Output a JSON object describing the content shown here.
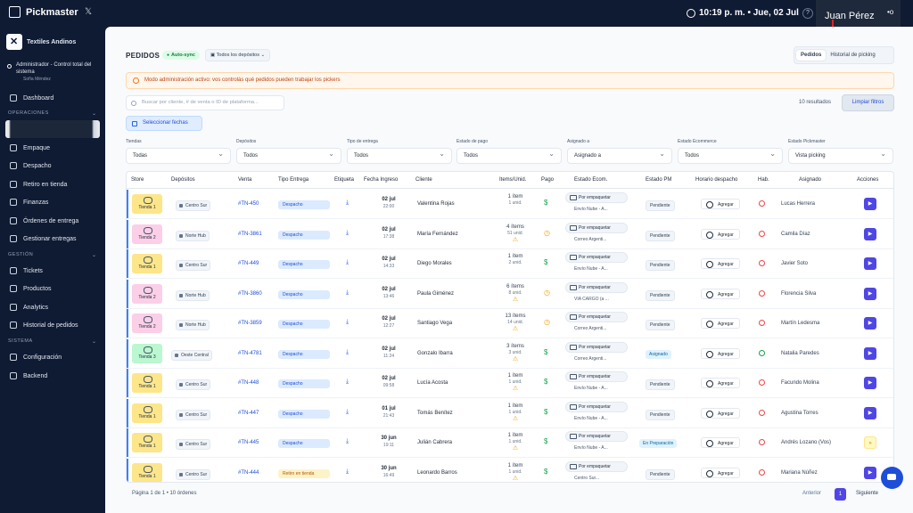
{
  "app": {
    "name": "Pickmaster",
    "time": "10:19 p. m. • Jue, 02 Jul",
    "user": "Juan Pérez"
  },
  "sidebar": {
    "company": "Textiles Andinos",
    "admin_label": "Administrador - Control total del sistema",
    "admin_user": "Sofía Méndez",
    "dashboard": "Dashboard",
    "sections": {
      "operaciones": "OPERACIONES",
      "gestion": "GESTIÓN",
      "sistema": "SISTEMA"
    },
    "operaciones": [
      "Empaque",
      "Despacho",
      "Retiro en tienda",
      "Finanzas",
      "Órdenes de entrega",
      "Gestionar entregas"
    ],
    "gestion": [
      "Tickets",
      "Productos",
      "Analytics",
      "Historial de pedidos"
    ],
    "sistema": [
      "Configuración",
      "Backend"
    ]
  },
  "header": {
    "title": "PEDIDOS",
    "autosync": "Auto-sync",
    "deposit_selector": "Todos los depósitos",
    "tabs": [
      "Pedidos",
      "Historial de picking"
    ]
  },
  "banner": "Modo administración activo: vos controlás qué pedidos pueden trabajar los pickers",
  "search": {
    "placeholder": "Buscar por cliente, # de venta o ID de plataforma...",
    "results": "10 resultados",
    "clear": "Limpiar filtros",
    "dates": "Seleccionar fechas"
  },
  "filters": [
    {
      "label": "Tiendas",
      "value": "Todas"
    },
    {
      "label": "Depósitos",
      "value": "Todos"
    },
    {
      "label": "Tipo de entrega",
      "value": "Todos"
    },
    {
      "label": "Estado de pago",
      "value": "Todos"
    },
    {
      "label": "Asignado a",
      "value": "Asignado a"
    },
    {
      "label": "Estado Ecommerce",
      "value": "Todos"
    },
    {
      "label": "Estado Pickmaster",
      "value": "Vista picking"
    }
  ],
  "columns": [
    "Store",
    "Depósitos",
    "Venta",
    "Tipo Entrega",
    "Etiqueta",
    "Fecha Ingreso",
    "Cliente",
    "Items/Unid.",
    "Pago",
    "Estado Ecom.",
    "Estado PM",
    "Horario despacho",
    "Hab.",
    "Asignado",
    "Acciones"
  ],
  "colors": {
    "primary": "#4f46e5",
    "tienda1": "#fde68a",
    "tienda2": "#fbcfe8",
    "tienda3": "#bbf7d0"
  },
  "orders": [
    {
      "store": "Tienda 1",
      "deposit": "Centro Sur",
      "sale": "#TN-450",
      "delivery": "Despacho",
      "date": "02 jul",
      "hour": "22:00",
      "client": "Valentina Rojas",
      "items": "1 ítem",
      "units": "1 unid.",
      "payment": "$",
      "ecom_status": "Por empaquetar",
      "ecom_sub": "Envío Nube - A...",
      "pm_status": "Pendiente",
      "schedule": "Agregar",
      "assigned": "Lucas Herrera",
      "action": "▶"
    },
    {
      "store": "Tienda 2",
      "deposit": "Norte Hub",
      "sale": "#TN-3861",
      "delivery": "Despacho",
      "date": "02 jul",
      "hour": "17:38",
      "client": "María Fernández",
      "items": "4 ítems",
      "units": "51 unid.",
      "payment": "◷",
      "ecom_status": "Por empaquetar",
      "ecom_sub": "Correo Argenti...",
      "pm_status": "Pendiente",
      "schedule": "Agregar",
      "assigned": "Camila Díaz",
      "action": "▶"
    },
    {
      "store": "Tienda 1",
      "deposit": "Centro Sur",
      "sale": "#TN-449",
      "delivery": "Despacho",
      "date": "02 jul",
      "hour": "14:33",
      "client": "Diego Morales",
      "items": "1 ítem",
      "units": "2 unid.",
      "payment": "$",
      "ecom_status": "Por empaquetar",
      "ecom_sub": "Envío Nube - A...",
      "pm_status": "Pendiente",
      "schedule": "Agregar",
      "assigned": "Javier Soto",
      "action": "▶"
    },
    {
      "store": "Tienda 2",
      "deposit": "Norte Hub",
      "sale": "#TN-3860",
      "delivery": "Despacho",
      "date": "02 jul",
      "hour": "13:46",
      "client": "Paula Giménez",
      "items": "6 ítems",
      "units": "8 unid.",
      "payment": "◷",
      "ecom_status": "Por empaquetar",
      "ecom_sub": "VIA CARGO (a ...",
      "pm_status": "Pendiente",
      "schedule": "Agregar",
      "assigned": "Florencia Silva",
      "action": "▶"
    },
    {
      "store": "Tienda 2",
      "deposit": "Norte Hub",
      "sale": "#TN-3859",
      "delivery": "Despacho",
      "date": "02 jul",
      "hour": "12:27",
      "client": "Santiago Vega",
      "items": "13 ítems",
      "units": "14 unid.",
      "payment": "◷",
      "ecom_status": "Por empaquetar",
      "ecom_sub": "Correo Argenti...",
      "pm_status": "Pendiente",
      "schedule": "Agregar",
      "assigned": "Martín Ledesma",
      "action": "▶"
    },
    {
      "store": "Tienda 3",
      "deposit": "Oeste Central",
      "sale": "#TN-4781",
      "delivery": "Despacho",
      "date": "02 jul",
      "hour": "11:24",
      "client": "Gonzalo Ibarra",
      "items": "3 ítems",
      "units": "3 unid.",
      "payment": "$",
      "ecom_status": "Por empaquetar",
      "ecom_sub": "Correo Argenti...",
      "pm_status": "Asignado",
      "schedule": "Agregar",
      "assigned": "Natalia Paredes",
      "action": "▶"
    },
    {
      "store": "Tienda 1",
      "deposit": "Centro Sur",
      "sale": "#TN-448",
      "delivery": "Despacho",
      "date": "02 jul",
      "hour": "09:58",
      "client": "Lucía Acosta",
      "items": "1 ítem",
      "units": "1 unid.",
      "payment": "$",
      "ecom_status": "Por empaquetar",
      "ecom_sub": "Envío Nube - A...",
      "pm_status": "Pendiente",
      "schedule": "Agregar",
      "assigned": "Facundo Molina",
      "action": "▶"
    },
    {
      "store": "Tienda 1",
      "deposit": "Centro Sur",
      "sale": "#TN-447",
      "delivery": "Despacho",
      "date": "01 jul",
      "hour": "21:43",
      "client": "Tomás Benítez",
      "items": "1 ítem",
      "units": "1 unid.",
      "payment": "$",
      "ecom_status": "Por empaquetar",
      "ecom_sub": "Envío Nube - A...",
      "pm_status": "Pendiente",
      "schedule": "Agregar",
      "assigned": "Agustina Torres",
      "action": "▶"
    },
    {
      "store": "Tienda 1",
      "deposit": "Centro Sur",
      "sale": "#TN-445",
      "delivery": "Despacho",
      "date": "30 jun",
      "hour": "19:11",
      "client": "Julián Cabrera",
      "items": "1 ítem",
      "units": "1 unid.",
      "payment": "$",
      "ecom_status": "Por empaquetar",
      "ecom_sub": "Envío Nube - A...",
      "pm_status": "En Preparación",
      "schedule": "Agregar",
      "assigned": "Andrés Lozano (Vos)",
      "action": "»"
    },
    {
      "store": "Tienda 1",
      "deposit": "Centro Sur",
      "sale": "#TN-444",
      "delivery": "Retiro en tienda",
      "date": "30 jun",
      "hour": "16:49",
      "client": "Leonardo Barros",
      "items": "1 ítem",
      "units": "1 unid.",
      "payment": "$",
      "ecom_status": "Por empaquetar",
      "ecom_sub": "Centro Sur...",
      "pm_status": "Pendiente",
      "schedule": "Agregar",
      "assigned": "Mariana Núñez",
      "action": "▶"
    }
  ],
  "pagination": {
    "info": "Página 1 de 1  •  10 órdenes",
    "prev": "Anterior",
    "page": "1",
    "next": "Siguiente"
  }
}
